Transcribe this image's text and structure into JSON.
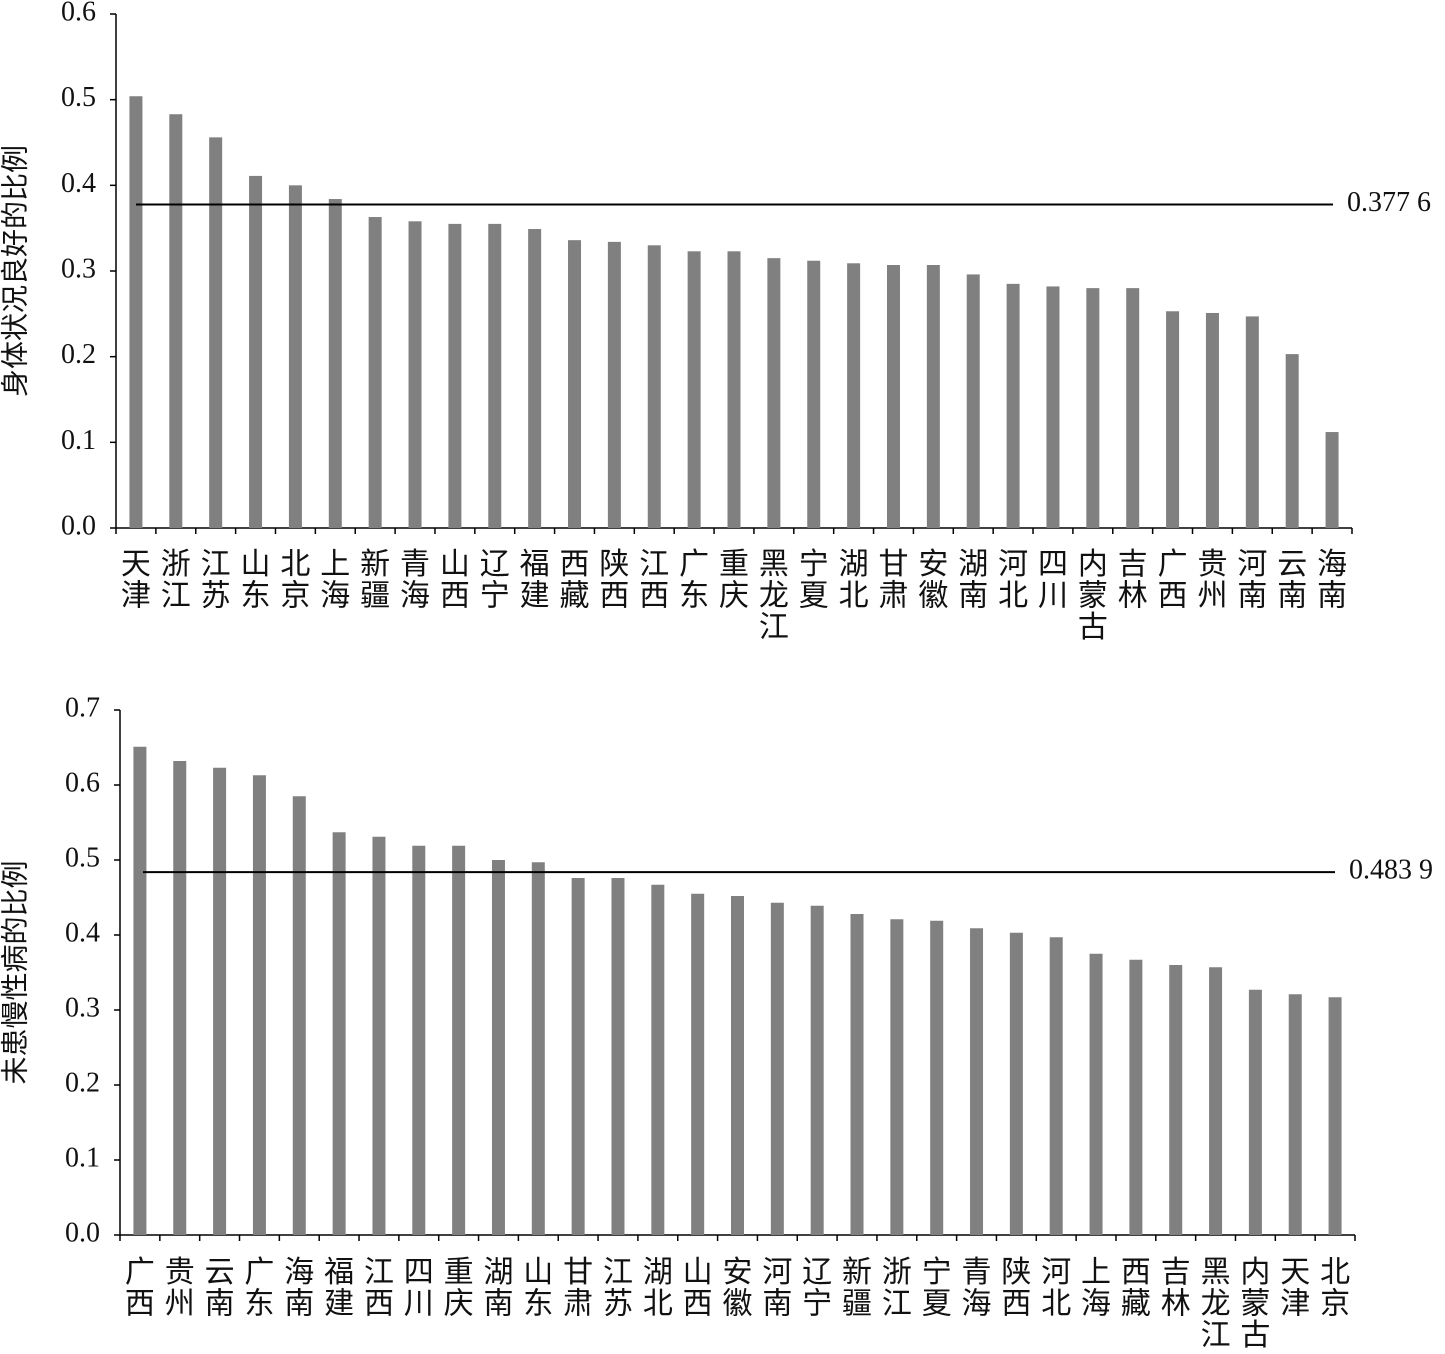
{
  "chart_data": [
    {
      "type": "bar",
      "ylabel": "身体状况良好的比例",
      "color": "#808080",
      "categories": [
        "天津",
        "浙江",
        "江苏",
        "山东",
        "北京",
        "上海",
        "新疆",
        "青海",
        "山西",
        "辽宁",
        "福建",
        "西藏",
        "陕西",
        "江西",
        "广东",
        "重庆",
        "黑龙江",
        "宁夏",
        "湖北",
        "甘肃",
        "安徽",
        "湖南",
        "河北",
        "四川",
        "内蒙古",
        "吉林",
        "广西",
        "贵州",
        "河南",
        "云南",
        "海南"
      ],
      "values": [
        0.504,
        0.483,
        0.456,
        0.411,
        0.4,
        0.384,
        0.363,
        0.358,
        0.355,
        0.355,
        0.349,
        0.336,
        0.334,
        0.33,
        0.323,
        0.323,
        0.315,
        0.312,
        0.309,
        0.307,
        0.307,
        0.296,
        0.285,
        0.282,
        0.28,
        0.28,
        0.253,
        0.251,
        0.247,
        0.203,
        0.112
      ],
      "ylim": [
        0,
        0.6
      ],
      "yticks": [
        {
          "value": 0,
          "label": "0.0"
        },
        0.1,
        0.2,
        0.3,
        0.4,
        0.5,
        0.6
      ],
      "reference_line": {
        "value": 0.3776,
        "label": "0.377 6"
      }
    },
    {
      "type": "bar",
      "ylabel": "未患慢性病的比例",
      "color": "#808080",
      "categories": [
        "广西",
        "贵州",
        "云南",
        "广东",
        "海南",
        "福建",
        "江西",
        "四川",
        "重庆",
        "湖南",
        "山东",
        "甘肃",
        "江苏",
        "湖北",
        "山西",
        "安徽",
        "河南",
        "辽宁",
        "新疆",
        "浙江",
        "宁夏",
        "青海",
        "陕西",
        "河北",
        "上海",
        "西藏",
        "吉林",
        "黑龙江",
        "内蒙古",
        "天津",
        "北京"
      ],
      "values": [
        0.651,
        0.632,
        0.623,
        0.613,
        0.585,
        0.537,
        0.531,
        0.519,
        0.519,
        0.5,
        0.497,
        0.476,
        0.476,
        0.467,
        0.455,
        0.452,
        0.443,
        0.439,
        0.428,
        0.421,
        0.419,
        0.409,
        0.403,
        0.397,
        0.375,
        0.367,
        0.36,
        0.357,
        0.327,
        0.321,
        0.317
      ],
      "ylim": [
        0,
        0.7
      ],
      "yticks": [
        {
          "value": 0,
          "label": "0.0"
        },
        0.1,
        0.2,
        0.3,
        0.4,
        0.5,
        0.6,
        0.7
      ],
      "reference_line": {
        "value": 0.4839,
        "label": "0.483 9"
      }
    }
  ]
}
